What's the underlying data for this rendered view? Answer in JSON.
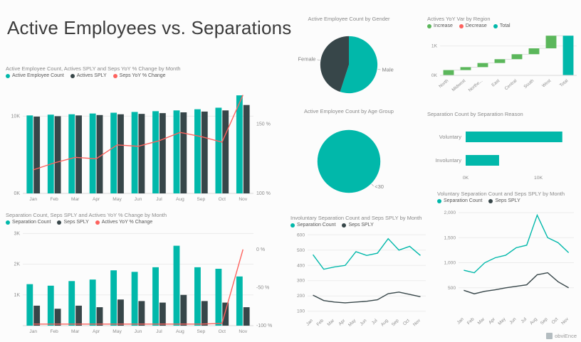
{
  "title": "Active Employees vs. Separations",
  "branding": "obviEnce",
  "colors": {
    "teal": "#01B8AA",
    "dark": "#374649",
    "red": "#FD625E",
    "green": "#5BB75B",
    "axis_text": "#8C8C8C",
    "grid": "#EBEBEB",
    "title_text": "#8A8A8A"
  },
  "chart_data": [
    {
      "id": "actives",
      "type": "combo",
      "title": "Active Employee Count, Actives SPLY and Seps YoY % Change by Month",
      "categories": [
        "Jan",
        "Feb",
        "Mar",
        "Apr",
        "May",
        "Jun",
        "Jul",
        "Aug",
        "Sep",
        "Oct",
        "Nov"
      ],
      "series": [
        {
          "name": "Active Employee Count",
          "kind": "bar",
          "color": "teal",
          "values": [
            10100,
            10200,
            10250,
            10350,
            10450,
            10550,
            10650,
            10750,
            10900,
            11100,
            12700
          ]
        },
        {
          "name": "Actives SPLY",
          "kind": "bar",
          "color": "dark",
          "values": [
            9950,
            10000,
            10100,
            10150,
            10250,
            10300,
            10400,
            10500,
            10600,
            10750,
            11450
          ]
        },
        {
          "name": "Seps YoY % Change",
          "kind": "line",
          "color": "red",
          "axis": "right",
          "values": [
            117,
            122,
            126,
            125,
            135,
            134,
            138,
            144,
            141,
            137,
            171
          ]
        }
      ],
      "y": {
        "min": 0,
        "max": 14000,
        "ticks": [
          {
            "v": 0,
            "label": "0K"
          },
          {
            "v": 10000,
            "label": "10K"
          }
        ]
      },
      "y2": {
        "min": 100,
        "max": 178,
        "ticks": [
          {
            "v": 100,
            "label": "100 %"
          },
          {
            "v": 150,
            "label": "150 %"
          }
        ]
      }
    },
    {
      "id": "seps",
      "type": "combo",
      "title": "Separation Count, Seps SPLY and Actives YoY % Change by Month",
      "categories": [
        "Jan",
        "Feb",
        "Mar",
        "Apr",
        "May",
        "Jun",
        "Jul",
        "Aug",
        "Sep",
        "Oct",
        "Nov"
      ],
      "series": [
        {
          "name": "Separation Count",
          "kind": "bar",
          "color": "teal",
          "values": [
            1350,
            1300,
            1450,
            1500,
            1800,
            1750,
            1900,
            2600,
            1900,
            1850,
            1600
          ]
        },
        {
          "name": "Seps SPLY",
          "kind": "bar",
          "color": "dark",
          "values": [
            650,
            550,
            650,
            600,
            850,
            800,
            750,
            1000,
            800,
            750,
            600
          ]
        },
        {
          "name": "Actives YoY % Change",
          "kind": "line",
          "color": "red",
          "axis": "right",
          "values": [
            -98,
            -98,
            -98,
            -98,
            -98,
            -98,
            -98,
            -98,
            -98,
            -97,
            0
          ]
        }
      ],
      "y": {
        "min": 0,
        "max": 3100,
        "ticks": [
          {
            "v": 1000,
            "label": "1K"
          },
          {
            "v": 2000,
            "label": "2K"
          },
          {
            "v": 3000,
            "label": "3K"
          }
        ]
      },
      "y2": {
        "min": -100,
        "max": 25,
        "ticks": [
          {
            "v": 0,
            "label": "0 %"
          },
          {
            "v": -50,
            "label": "-50 %"
          },
          {
            "v": -100,
            "label": "-100 %"
          }
        ]
      }
    },
    {
      "id": "gender",
      "type": "pie",
      "title": "Active Employee Count by Gender",
      "slices": [
        {
          "label": "Male",
          "value": 55,
          "color": "teal"
        },
        {
          "label": "Female",
          "value": 45,
          "color": "dark"
        }
      ]
    },
    {
      "id": "age",
      "type": "pie",
      "title": "Active Employee Count by Age Group",
      "slices": [
        {
          "label": "<30",
          "value": 100,
          "color": "teal",
          "label_angle": 135
        }
      ]
    },
    {
      "id": "region",
      "type": "waterfall",
      "title": "Actives YoY Var by Region",
      "legend": [
        {
          "label": "Increase",
          "color": "green"
        },
        {
          "label": "Decrease",
          "color": "red"
        },
        {
          "label": "Total",
          "color": "teal"
        }
      ],
      "categories": [
        "North",
        "Midwest",
        "Northe...",
        "East",
        "Central",
        "South",
        "West",
        "Total"
      ],
      "values": [
        180,
        100,
        140,
        130,
        170,
        200,
        430,
        1350
      ],
      "y": {
        "min": 0,
        "max": 1500,
        "ticks": [
          {
            "v": 0,
            "label": "0K"
          },
          {
            "v": 1000,
            "label": "1K"
          }
        ]
      }
    },
    {
      "id": "reason",
      "type": "bar",
      "orientation": "horizontal",
      "title": "Separation Count by Separation Reason",
      "categories": [
        "Voluntary",
        "Involuntary"
      ],
      "values": [
        13300,
        4600
      ],
      "x": {
        "min": 0,
        "max": 14500,
        "ticks": [
          {
            "v": 0,
            "label": "0K"
          },
          {
            "v": 10000,
            "label": "10K"
          }
        ]
      }
    },
    {
      "id": "inv",
      "type": "line",
      "title": "Involuntary Separation Count and Seps SPLY by Month",
      "categories": [
        "Jan",
        "Feb",
        "Mar",
        "Apr",
        "May",
        "Jun",
        "Jul",
        "Aug",
        "Sep",
        "Oct",
        "Nov"
      ],
      "series": [
        {
          "name": "Separation Count",
          "color": "teal",
          "values": [
            470,
            375,
            390,
            400,
            490,
            465,
            480,
            575,
            500,
            525,
            465
          ]
        },
        {
          "name": "Seps SPLY",
          "color": "dark",
          "values": [
            205,
            170,
            160,
            155,
            160,
            165,
            175,
            215,
            225,
            210,
            195
          ]
        }
      ],
      "y": {
        "min": 80,
        "max": 620,
        "ticks": [
          {
            "v": 100,
            "label": "100"
          },
          {
            "v": 200,
            "label": "200"
          },
          {
            "v": 300,
            "label": "300"
          },
          {
            "v": 400,
            "label": "400"
          },
          {
            "v": 500,
            "label": "500"
          },
          {
            "v": 600,
            "label": "600"
          }
        ]
      }
    },
    {
      "id": "vol",
      "type": "line",
      "title": "Voluntary Separation Count and Seps SPLY by Month",
      "categories": [
        "Jan",
        "Feb",
        "Mar",
        "Apr",
        "May",
        "Jun",
        "Jul",
        "Aug",
        "Sep",
        "Oct",
        "Nov"
      ],
      "series": [
        {
          "name": "Separation Count",
          "color": "teal",
          "values": [
            850,
            800,
            1000,
            1100,
            1150,
            1300,
            1350,
            1950,
            1500,
            1400,
            1200
          ]
        },
        {
          "name": "Seps SPLY",
          "color": "dark",
          "values": [
            450,
            380,
            430,
            460,
            500,
            530,
            560,
            760,
            800,
            620,
            500
          ]
        }
      ],
      "y": {
        "min": 0,
        "max": 2100,
        "ticks": [
          {
            "v": 500,
            "label": "500"
          },
          {
            "v": 1000,
            "label": "1,000"
          },
          {
            "v": 1500,
            "label": "1,500"
          },
          {
            "v": 2000,
            "label": "2,000"
          }
        ]
      }
    }
  ]
}
